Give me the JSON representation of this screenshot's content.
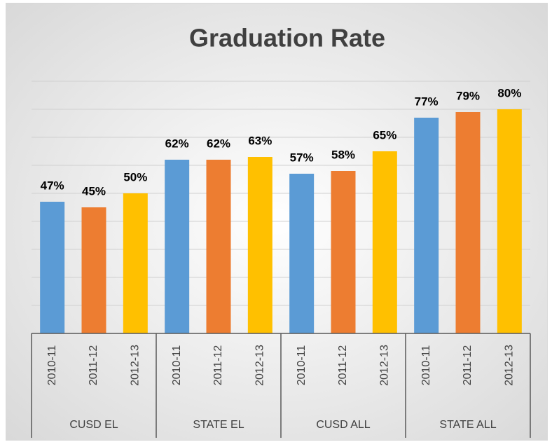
{
  "chart_data": {
    "type": "bar",
    "title": "Graduation Rate",
    "categories": [
      "CUSD EL",
      "STATE EL",
      "CUSD ALL",
      "STATE ALL"
    ],
    "series": [
      {
        "name": "2010-11",
        "color": "#5b9bd5",
        "values": [
          47,
          62,
          57,
          77
        ],
        "value_labels": [
          "47%",
          "62%",
          "57%",
          "77%"
        ]
      },
      {
        "name": "2011-12",
        "color": "#ed7d31",
        "values": [
          45,
          62,
          58,
          79
        ],
        "value_labels": [
          "45%",
          "62%",
          "58%",
          "79%"
        ]
      },
      {
        "name": "2012-13",
        "color": "#ffc000",
        "values": [
          50,
          63,
          65,
          80
        ],
        "value_labels": [
          "50%",
          "63%",
          "65%",
          "80%"
        ]
      }
    ],
    "ylim": [
      0,
      90
    ],
    "yticks": [
      0,
      10,
      20,
      30,
      40,
      50,
      60,
      70,
      80,
      90
    ],
    "grid": true
  }
}
